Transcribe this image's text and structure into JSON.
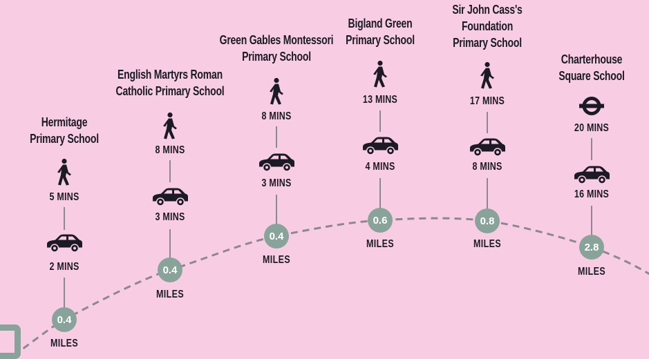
{
  "unit_label": "MILES",
  "colors": {
    "background": "#f8cde3",
    "distance_circle": "#89a39a",
    "route_line": "#8c8790",
    "text": "#1c1a24"
  },
  "schools": [
    {
      "name_lines": [
        "Hermitage",
        "Primary School"
      ],
      "first_mode": "walk-icon",
      "first_time": "5 MINS",
      "car_time": "2 MINS",
      "distance": "0.4"
    },
    {
      "name_lines": [
        "English Martyrs Roman",
        "Catholic Primary School"
      ],
      "first_mode": "walk-icon",
      "first_time": "8 MINS",
      "car_time": "3 MINS",
      "distance": "0.4"
    },
    {
      "name_lines": [
        "Green Gables Montessori",
        "Primary School"
      ],
      "first_mode": "walk-icon",
      "first_time": "8 MINS",
      "car_time": "3 MINS",
      "distance": "0.4"
    },
    {
      "name_lines": [
        "Bigland Green",
        "Primary School"
      ],
      "first_mode": "walk-icon",
      "first_time": "13 MINS",
      "car_time": "4 MINS",
      "distance": "0.6"
    },
    {
      "name_lines": [
        "Sir John Cass's",
        "Foundation",
        "Primary School"
      ],
      "first_mode": "walk-icon",
      "first_time": "17 MINS",
      "car_time": "8 MINS",
      "distance": "0.8"
    },
    {
      "name_lines": [
        "Charterhouse",
        "Square School"
      ],
      "first_mode": "underground-icon",
      "first_time": "20 MINS",
      "car_time": "16 MINS",
      "distance": "2.8"
    }
  ]
}
